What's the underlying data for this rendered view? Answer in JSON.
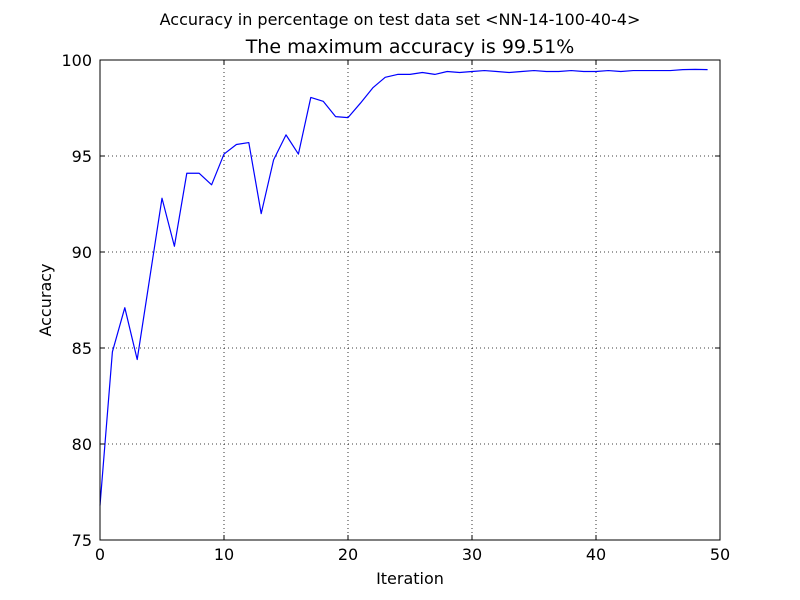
{
  "chart_data": {
    "type": "line",
    "suptitle": "Accuracy in percentage on test data set <NN-14-100-40-4>",
    "title": "The maximum accuracy is 99.51%",
    "xlabel": "Iteration",
    "ylabel": "Accuracy",
    "xlim": [
      0,
      50
    ],
    "ylim": [
      75,
      100
    ],
    "xticks": [
      0,
      10,
      20,
      30,
      40,
      50
    ],
    "yticks": [
      75,
      80,
      85,
      90,
      95,
      100
    ],
    "grid": true,
    "series": [
      {
        "color": "#0000ff",
        "x": [
          0,
          1,
          2,
          3,
          4,
          5,
          6,
          7,
          8,
          9,
          10,
          11,
          12,
          13,
          14,
          15,
          16,
          17,
          18,
          19,
          20,
          21,
          22,
          23,
          24,
          25,
          26,
          27,
          28,
          29,
          30,
          31,
          32,
          33,
          34,
          35,
          36,
          37,
          38,
          39,
          40,
          41,
          42,
          43,
          44,
          45,
          46,
          47,
          48,
          49
        ],
        "y": [
          76.8,
          84.8,
          87.1,
          84.4,
          88.6,
          92.8,
          90.3,
          94.1,
          94.1,
          93.5,
          95.1,
          95.6,
          95.7,
          92.0,
          94.8,
          96.1,
          95.1,
          98.05,
          97.85,
          97.05,
          97.0,
          97.75,
          98.55,
          99.1,
          99.25,
          99.25,
          99.35,
          99.25,
          99.4,
          99.35,
          99.4,
          99.45,
          99.4,
          99.35,
          99.4,
          99.45,
          99.4,
          99.4,
          99.45,
          99.4,
          99.4,
          99.45,
          99.4,
          99.45,
          99.45,
          99.45,
          99.45,
          99.5,
          99.51,
          99.5
        ]
      }
    ]
  }
}
